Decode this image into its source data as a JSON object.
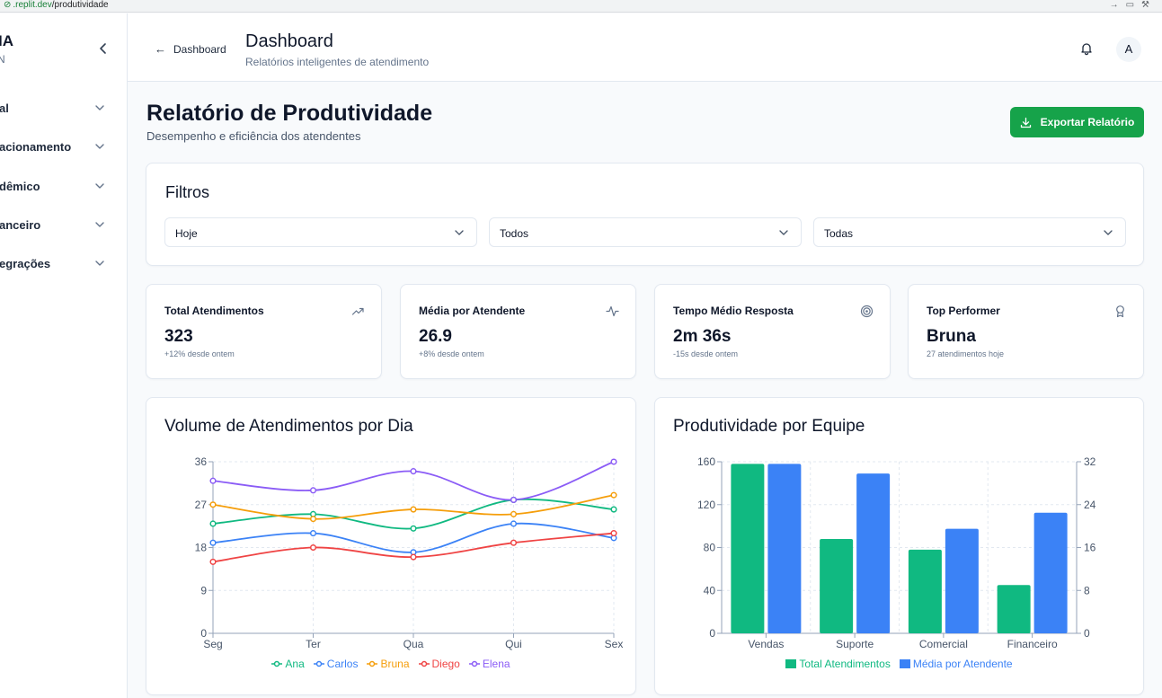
{
  "browser": {
    "url_host": ".replit.dev",
    "url_path": "/produtividade"
  },
  "sidebar": {
    "brand": "IA",
    "brand_sub": "N",
    "items": [
      {
        "label": "al"
      },
      {
        "label": "acionamento"
      },
      {
        "label": "dêmico"
      },
      {
        "label": "anceiro"
      },
      {
        "label": "egrações"
      }
    ]
  },
  "header": {
    "back_label": "Dashboard",
    "title": "Dashboard",
    "subtitle": "Relatórios inteligentes de atendimento",
    "avatar_initial": "A"
  },
  "page": {
    "title": "Relatório de Produtividade",
    "subtitle": "Desempenho e eficiência dos atendentes",
    "export_label": "Exportar Relatório"
  },
  "filters": {
    "title": "Filtros",
    "period": "Hoje",
    "attendant": "Todos",
    "team": "Todas"
  },
  "kpis": [
    {
      "label": "Total Atendimentos",
      "value": "323",
      "note": "+12% desde ontem",
      "icon": "trending-up-icon"
    },
    {
      "label": "Média por Atendente",
      "value": "26.9",
      "note": "+8% desde ontem",
      "icon": "activity-icon"
    },
    {
      "label": "Tempo Médio Resposta",
      "value": "2m 36s",
      "note": "-15s desde ontem",
      "icon": "target-icon"
    },
    {
      "label": "Top Performer",
      "value": "Bruna",
      "note": "27 atendimentos hoje",
      "icon": "award-icon"
    }
  ],
  "colors": {
    "green": "#10b981",
    "blue": "#3b82f6",
    "amber": "#f59e0b",
    "red": "#ef4444",
    "purple": "#8b5cf6",
    "export": "#16a34a"
  },
  "chart_data": [
    {
      "type": "line",
      "title": "Volume de Atendimentos por Dia",
      "categories": [
        "Seg",
        "Ter",
        "Qua",
        "Qui",
        "Sex"
      ],
      "ylim": [
        0,
        36
      ],
      "yticks": [
        0,
        9,
        18,
        27,
        36
      ],
      "grid": true,
      "legend": "bottom",
      "series": [
        {
          "name": "Ana",
          "color": "#10b981",
          "values": [
            23,
            25,
            22,
            28,
            26
          ]
        },
        {
          "name": "Carlos",
          "color": "#3b82f6",
          "values": [
            19,
            21,
            17,
            23,
            20
          ]
        },
        {
          "name": "Bruna",
          "color": "#f59e0b",
          "values": [
            27,
            24,
            26,
            25,
            29
          ]
        },
        {
          "name": "Diego",
          "color": "#ef4444",
          "values": [
            15,
            18,
            16,
            19,
            21
          ]
        },
        {
          "name": "Elena",
          "color": "#8b5cf6",
          "values": [
            32,
            30,
            34,
            28,
            36
          ]
        }
      ]
    },
    {
      "type": "bar",
      "title": "Produtividade por Equipe",
      "categories": [
        "Vendas",
        "Suporte",
        "Comercial",
        "Financeiro"
      ],
      "ylim_left": [
        0,
        160
      ],
      "yticks_left": [
        0,
        40,
        80,
        120,
        160
      ],
      "ylim_right": [
        0,
        32
      ],
      "yticks_right": [
        0,
        8,
        16,
        24,
        32
      ],
      "grid": true,
      "legend": "bottom",
      "series": [
        {
          "name": "Total Atendimentos",
          "color": "#10b981",
          "axis": "left",
          "values": [
            158,
            88,
            78,
            45
          ]
        },
        {
          "name": "Média por Atendente",
          "color": "#3b82f6",
          "axis": "right",
          "values": [
            31.6,
            29.8,
            19.5,
            22.5
          ]
        }
      ]
    }
  ]
}
